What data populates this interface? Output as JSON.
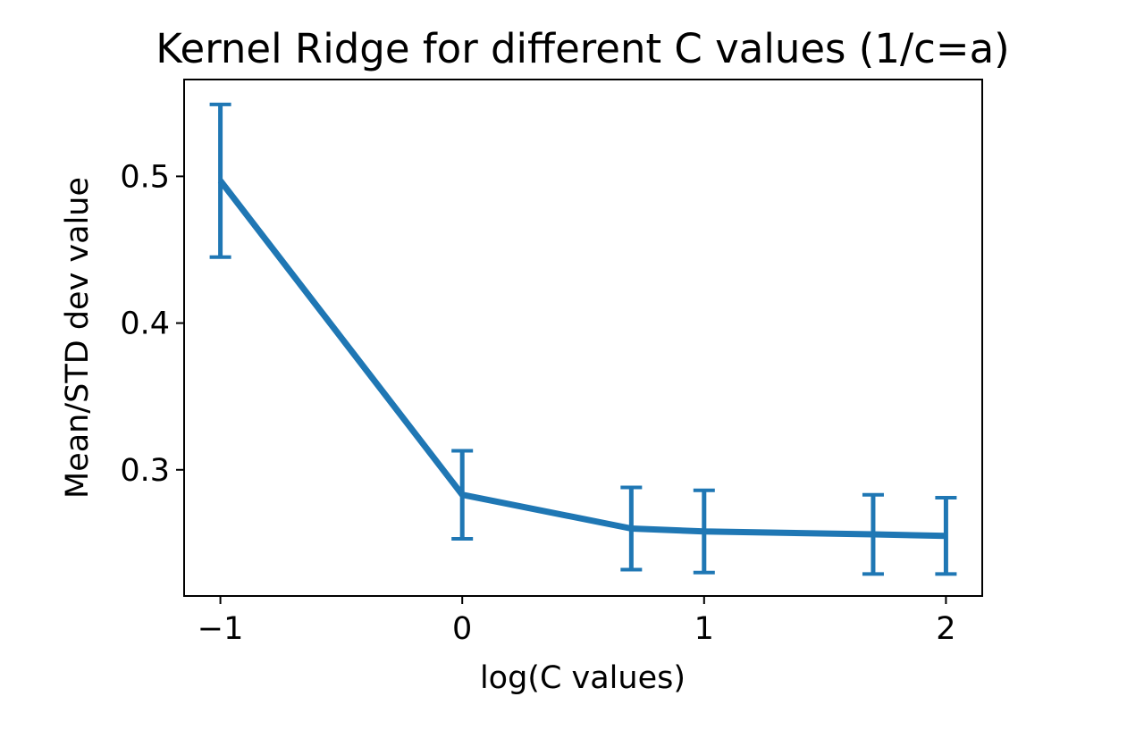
{
  "chart_data": {
    "type": "line",
    "title": "Kernel Ridge for different C values (1/c=a)",
    "xlabel": "log(C values)",
    "ylabel": "Mean/STD dev value",
    "x": [
      -1,
      0,
      0.699,
      1,
      1.699,
      2
    ],
    "series": [
      {
        "values": [
          0.497,
          0.283,
          0.26,
          0.258,
          0.256,
          0.255
        ],
        "error": [
          0.052,
          0.03,
          0.028,
          0.028,
          0.027,
          0.026
        ],
        "color": "#1f77b4"
      }
    ],
    "xticks": [
      -1,
      0,
      1,
      2
    ],
    "xtick_labels": [
      "−1",
      "0",
      "1",
      "2"
    ],
    "yticks": [
      0.3,
      0.4,
      0.5
    ],
    "ytick_labels": [
      "0.3",
      "0.4",
      "0.5"
    ],
    "xlim": [
      -1.15,
      2.15
    ],
    "ylim": [
      0.214,
      0.566
    ],
    "grid": false,
    "legend": "none"
  }
}
